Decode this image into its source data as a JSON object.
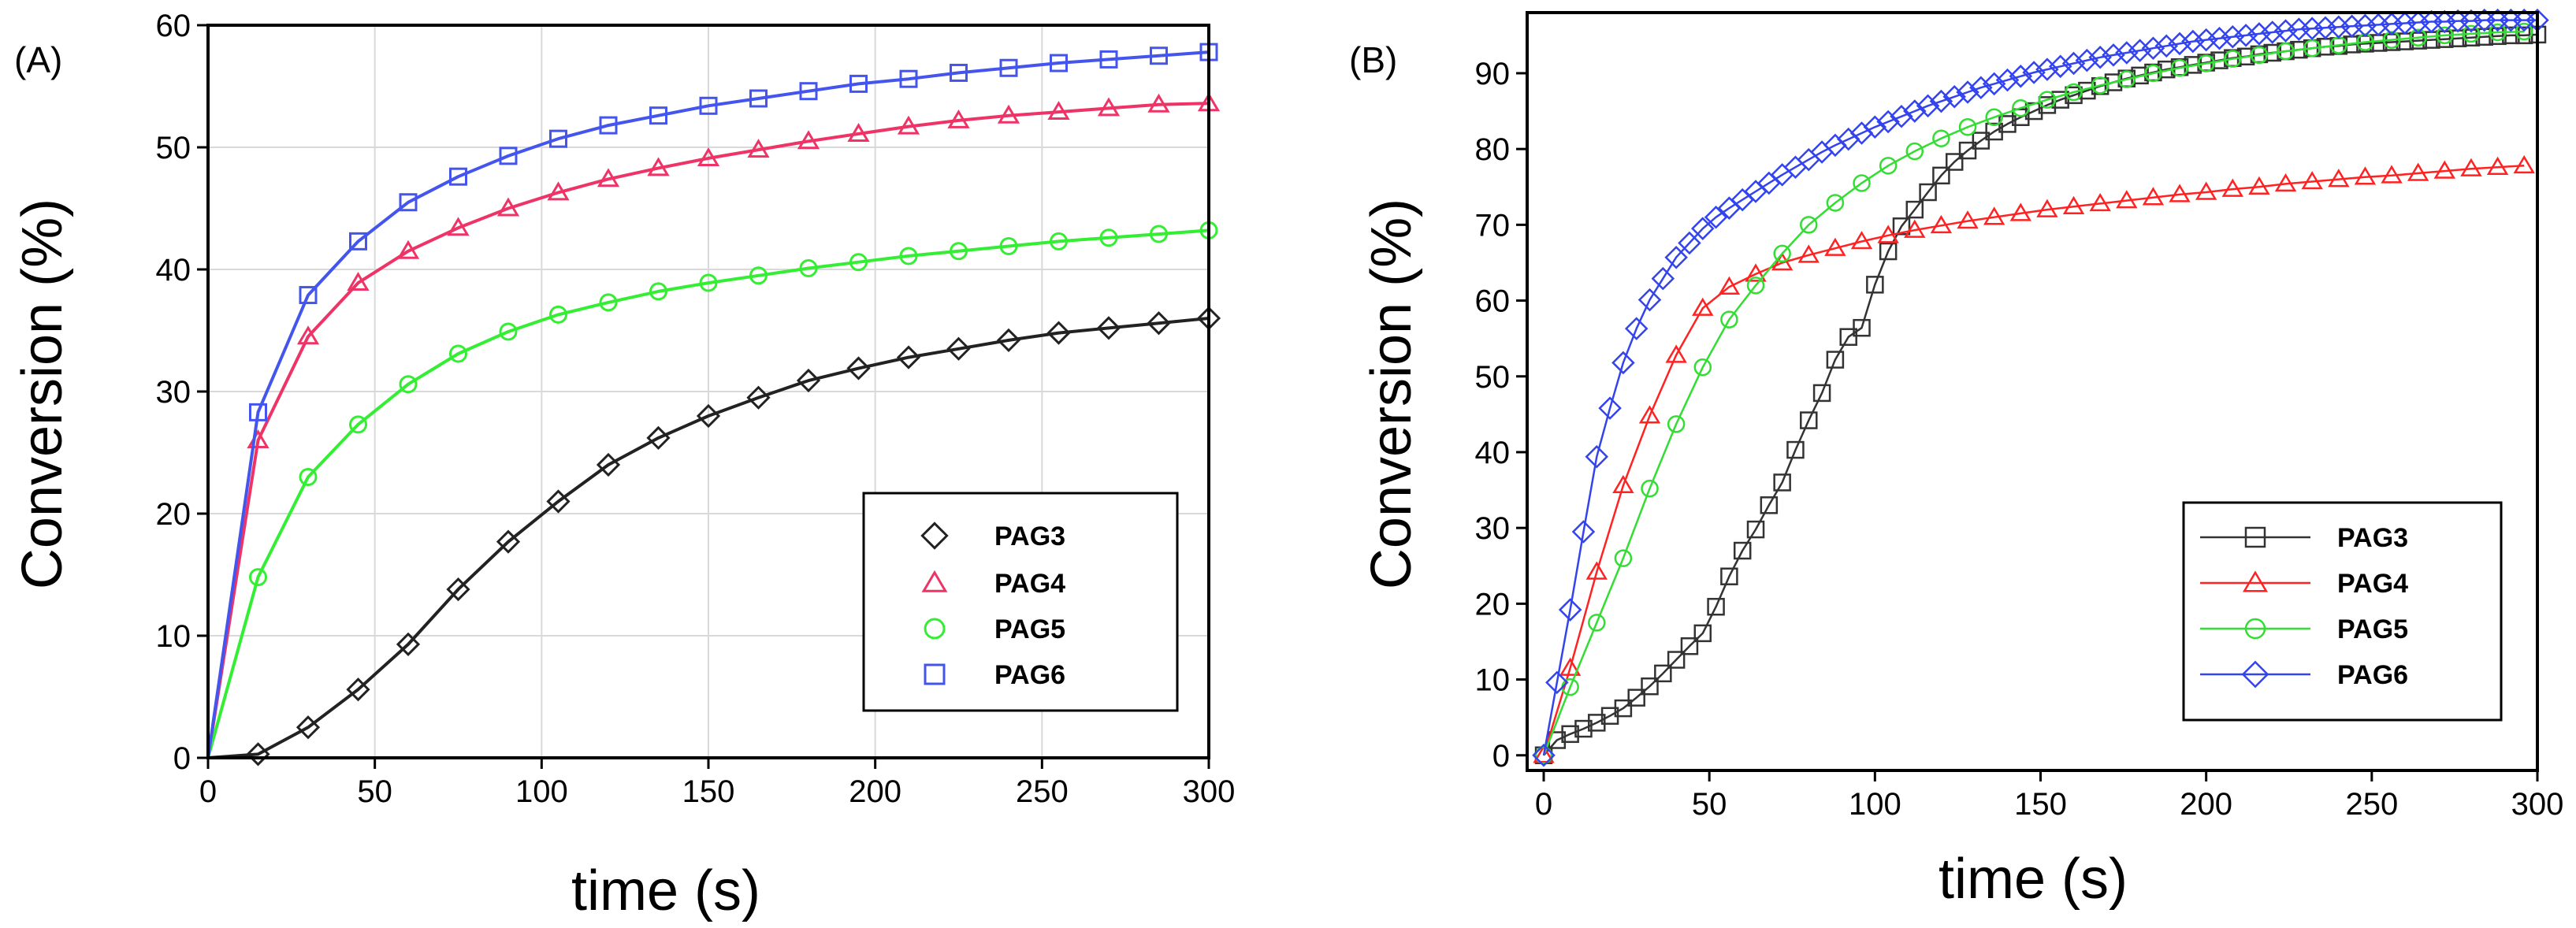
{
  "chart_data": [
    {
      "type": "line",
      "panel_label": "(A)",
      "xlabel": "time (s)",
      "ylabel": "Conversion (%)",
      "xlim": [
        0,
        300
      ],
      "ylim": [
        0,
        60
      ],
      "xticks": [
        "0",
        "50",
        "100",
        "150",
        "200",
        "250",
        "300"
      ],
      "yticks": [
        "0",
        "10",
        "20",
        "30",
        "40",
        "50",
        "60"
      ],
      "legend_position": "lower-right",
      "series": [
        {
          "name": "PAG3",
          "color": "#222222",
          "marker": "diamond",
          "x": [
            0,
            15,
            30,
            45,
            60,
            75,
            90,
            105,
            120,
            135,
            150,
            165,
            180,
            195,
            210,
            225,
            240,
            255,
            270,
            285,
            300
          ],
          "values": [
            0,
            0.3,
            2.5,
            5.6,
            9.3,
            13.8,
            17.7,
            21,
            24,
            26.2,
            28,
            29.5,
            30.9,
            31.9,
            32.8,
            33.5,
            34.2,
            34.8,
            35.2,
            35.6,
            36
          ]
        },
        {
          "name": "PAG4",
          "color": "#ee3366",
          "marker": "triangle",
          "x": [
            0,
            15,
            30,
            45,
            60,
            75,
            90,
            105,
            120,
            135,
            150,
            165,
            180,
            195,
            210,
            225,
            240,
            255,
            270,
            285,
            300
          ],
          "values": [
            0,
            26,
            34.5,
            38.9,
            41.5,
            43.4,
            45,
            46.3,
            47.4,
            48.3,
            49.1,
            49.8,
            50.5,
            51.1,
            51.7,
            52.2,
            52.6,
            52.9,
            53.2,
            53.5,
            53.6
          ]
        },
        {
          "name": "PAG5",
          "color": "#33ee33",
          "marker": "circle",
          "x": [
            0,
            15,
            30,
            45,
            60,
            75,
            90,
            105,
            120,
            135,
            150,
            165,
            180,
            195,
            210,
            225,
            240,
            255,
            270,
            285,
            300
          ],
          "values": [
            0,
            14.8,
            23,
            27.3,
            30.6,
            33.1,
            34.9,
            36.3,
            37.3,
            38.2,
            38.9,
            39.5,
            40.1,
            40.6,
            41.1,
            41.5,
            41.9,
            42.3,
            42.6,
            42.9,
            43.2
          ]
        },
        {
          "name": "PAG6",
          "color": "#4455ee",
          "marker": "square",
          "x": [
            0,
            15,
            30,
            45,
            60,
            75,
            90,
            105,
            120,
            135,
            150,
            165,
            180,
            195,
            210,
            225,
            240,
            255,
            270,
            285,
            300
          ],
          "values": [
            0,
            28.3,
            37.9,
            42.3,
            45.5,
            47.6,
            49.3,
            50.7,
            51.8,
            52.6,
            53.4,
            54,
            54.6,
            55.2,
            55.6,
            56.1,
            56.5,
            56.9,
            57.2,
            57.5,
            57.8
          ]
        }
      ]
    },
    {
      "type": "line",
      "panel_label": "(B)",
      "xlabel": "time (s)",
      "ylabel": "Conversion (%)",
      "xlim": [
        -5,
        300
      ],
      "ylim": [
        -2,
        98
      ],
      "xticks": [
        "0",
        "50",
        "100",
        "150",
        "200",
        "250",
        "300"
      ],
      "yticks": [
        "0",
        "10",
        "20",
        "30",
        "40",
        "50",
        "60",
        "70",
        "80",
        "90"
      ],
      "legend_position": "lower-right",
      "series": [
        {
          "name": "PAG3",
          "color": "#333333",
          "marker": "square",
          "x": [
            0,
            4,
            8,
            12,
            16,
            20,
            24,
            28,
            32,
            36,
            40,
            44,
            48,
            52,
            56,
            60,
            64,
            68,
            72,
            76,
            80,
            84,
            88,
            92,
            96,
            100,
            104,
            108,
            112,
            116,
            120,
            124,
            128,
            132,
            136,
            140,
            144,
            148,
            152,
            156,
            160,
            164,
            168,
            172,
            176,
            180,
            184,
            188,
            192,
            196,
            200,
            204,
            208,
            212,
            216,
            220,
            224,
            228,
            232,
            236,
            240,
            244,
            248,
            252,
            256,
            260,
            264,
            268,
            272,
            276,
            280,
            284,
            288,
            292,
            296,
            300
          ],
          "values": [
            0,
            2,
            2.8,
            3.5,
            4.3,
            5.2,
            6.2,
            7.6,
            9.1,
            10.8,
            12.6,
            14.4,
            16.1,
            19.6,
            23.6,
            27,
            29.8,
            33,
            36,
            40.3,
            44.2,
            47.8,
            52.2,
            55.2,
            56.4,
            62.1,
            66.5,
            69.8,
            72,
            74.3,
            76.5,
            78.3,
            79.8,
            81.1,
            82.3,
            83.3,
            84.2,
            85,
            85.8,
            86.5,
            87.1,
            87.7,
            88.3,
            88.8,
            89.3,
            89.7,
            90.1,
            90.5,
            90.8,
            91.1,
            91.4,
            91.7,
            92,
            92.2,
            92.5,
            92.7,
            92.9,
            93.1,
            93.3,
            93.5,
            93.6,
            93.8,
            93.9,
            94,
            94.1,
            94.2,
            94.3,
            94.4,
            94.5,
            94.6,
            94.7,
            94.8,
            94.9,
            95,
            95,
            95.1
          ]
        },
        {
          "name": "PAG4",
          "color": "#ff2222",
          "marker": "triangle",
          "x": [
            0,
            8,
            16,
            24,
            32,
            40,
            48,
            56,
            64,
            72,
            80,
            88,
            96,
            104,
            112,
            120,
            128,
            136,
            144,
            152,
            160,
            168,
            176,
            184,
            192,
            200,
            208,
            216,
            224,
            232,
            240,
            248,
            256,
            264,
            272,
            280,
            288,
            296
          ],
          "values": [
            0,
            11.5,
            24.2,
            35.6,
            44.8,
            52.8,
            59,
            61.8,
            63.5,
            65,
            66,
            66.9,
            67.8,
            68.6,
            69.3,
            69.9,
            70.5,
            71,
            71.5,
            72,
            72.4,
            72.8,
            73.2,
            73.6,
            74,
            74.3,
            74.7,
            75,
            75.4,
            75.7,
            76,
            76.3,
            76.5,
            76.8,
            77.1,
            77.4,
            77.6,
            77.8
          ]
        },
        {
          "name": "PAG5",
          "color": "#33dd33",
          "marker": "circle",
          "x": [
            0,
            8,
            16,
            24,
            32,
            40,
            48,
            56,
            64,
            72,
            80,
            88,
            96,
            104,
            112,
            120,
            128,
            136,
            144,
            152,
            160,
            168,
            176,
            184,
            192,
            200,
            208,
            216,
            224,
            232,
            240,
            248,
            256,
            264,
            272,
            280,
            288,
            296
          ],
          "values": [
            0,
            9,
            17.5,
            26,
            35.2,
            43.7,
            51.2,
            57.5,
            62,
            66.2,
            70,
            72.9,
            75.5,
            77.8,
            79.7,
            81.4,
            82.9,
            84.2,
            85.4,
            86.5,
            87.5,
            88.4,
            89.2,
            90,
            90.7,
            91.3,
            91.9,
            92.4,
            92.9,
            93.3,
            93.7,
            94.1,
            94.4,
            94.7,
            95,
            95.2,
            95.4,
            95.5
          ]
        },
        {
          "name": "PAG6",
          "color": "#3344ee",
          "marker": "diamond",
          "x": [
            0,
            4,
            8,
            12,
            16,
            20,
            24,
            28,
            32,
            36,
            40,
            44,
            48,
            52,
            56,
            60,
            64,
            68,
            72,
            76,
            80,
            84,
            88,
            92,
            96,
            100,
            104,
            108,
            112,
            116,
            120,
            124,
            128,
            132,
            136,
            140,
            144,
            148,
            152,
            156,
            160,
            164,
            168,
            172,
            176,
            180,
            184,
            188,
            192,
            196,
            200,
            204,
            208,
            212,
            216,
            220,
            224,
            228,
            232,
            236,
            240,
            244,
            248,
            252,
            256,
            260,
            264,
            268,
            272,
            276,
            280,
            284,
            288,
            292,
            296,
            300
          ],
          "values": [
            0,
            9.6,
            19.2,
            29.5,
            39.4,
            45.8,
            51.8,
            56.3,
            60.1,
            62.9,
            65.7,
            67.6,
            69.5,
            71,
            72.2,
            73.3,
            74.4,
            75.5,
            76.6,
            77.6,
            78.6,
            79.6,
            80.5,
            81.3,
            82.1,
            82.9,
            83.6,
            84.3,
            85,
            85.7,
            86.3,
            86.9,
            87.5,
            88.1,
            88.6,
            89.1,
            89.6,
            90.1,
            90.5,
            90.9,
            91.3,
            91.7,
            92.1,
            92.4,
            92.7,
            93,
            93.3,
            93.6,
            93.9,
            94.2,
            94.4,
            94.6,
            94.8,
            95,
            95.2,
            95.4,
            95.6,
            95.8,
            95.9,
            96,
            96.1,
            96.2,
            96.3,
            96.4,
            96.5,
            96.6,
            96.7,
            96.8,
            96.8,
            96.9,
            96.9,
            97,
            97,
            97,
            97,
            97
          ]
        }
      ]
    }
  ]
}
